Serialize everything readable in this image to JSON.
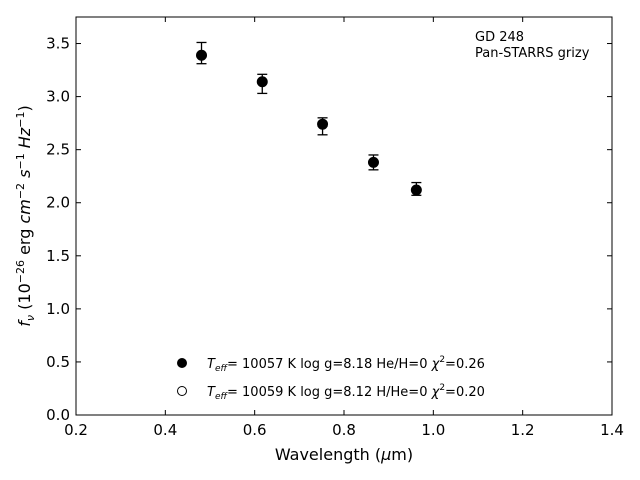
{
  "chart_data": {
    "type": "scatter",
    "title": "",
    "xlabel": "Wavelength (μm)",
    "ylabel": "f_ν (10^−26 erg cm^−2 s^−1 Hz^−1)",
    "xlim": [
      0.2,
      1.4
    ],
    "ylim": [
      0.0,
      3.75
    ],
    "xticks": [
      "0.2",
      "0.4",
      "0.6",
      "0.8",
      "1.0",
      "1.2",
      "1.4"
    ],
    "yticks": [
      "0.0",
      "0.5",
      "1.0",
      "1.5",
      "2.0",
      "2.5",
      "3.0",
      "3.5"
    ],
    "grid": false,
    "annotation": [
      "GD 248",
      "Pan-STARRS grizy"
    ],
    "series": [
      {
        "marker": "filled-circle",
        "x": [
          0.481,
          0.617,
          0.752,
          0.866,
          0.962
        ],
        "y": [
          3.39,
          3.14,
          2.74,
          2.38,
          2.12
        ],
        "yerr_low": [
          0.08,
          0.11,
          0.1,
          0.07,
          0.05
        ],
        "yerr_high": [
          0.12,
          0.07,
          0.06,
          0.07,
          0.07
        ]
      }
    ],
    "legend": {
      "placement": "lower-center",
      "entries": [
        {
          "marker": "filled-circle",
          "teff": "10057 K",
          "logg": "log g=8.18",
          "comp": "He/H=0",
          "chi2": "=0.26"
        },
        {
          "marker": "open-circle",
          "teff": "10059 K",
          "logg": "log g=8.12",
          "comp": "H/He=0",
          "chi2": "=0.20"
        }
      ]
    }
  }
}
